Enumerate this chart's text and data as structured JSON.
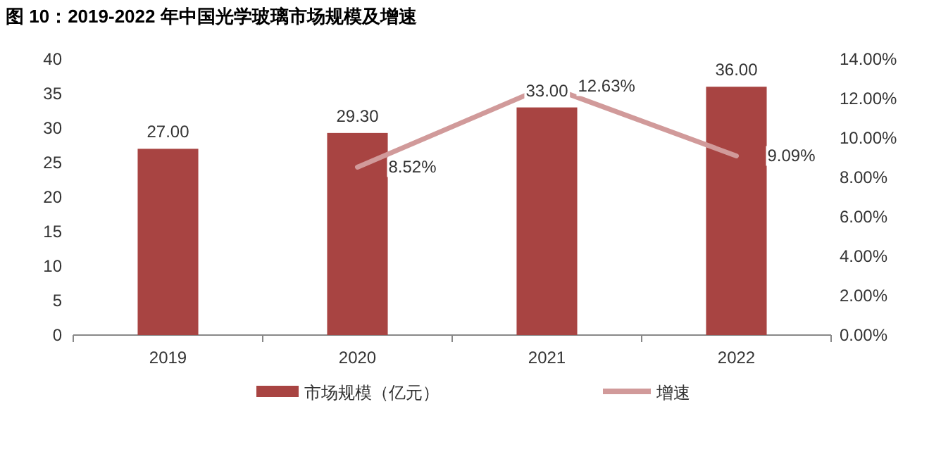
{
  "chart_data": {
    "type": "bar",
    "title": "图 10：2019-2022 年中国光学玻璃市场规模及增速",
    "categories": [
      "2019",
      "2020",
      "2021",
      "2022"
    ],
    "series": [
      {
        "name": "市场规模（亿元）",
        "color": "#a84442",
        "values": [
          27,
          29.3,
          33,
          36
        ],
        "value_labels": [
          "27.00",
          "29.30",
          "33.00",
          "36.00"
        ]
      },
      {
        "name": "增速",
        "type": "line",
        "color": "#d19a9a",
        "axis": "y2",
        "values": [
          null,
          8.52,
          12.63,
          9.09
        ],
        "value_labels": [
          null,
          "8.52%",
          "12.63%",
          "9.09%"
        ]
      }
    ],
    "ylim": [
      0,
      40
    ],
    "yticks": [
      0,
      5,
      10,
      15,
      20,
      25,
      30,
      35,
      40
    ],
    "y2lim": [
      0,
      14
    ],
    "y2ticks": [
      {
        "value": 0,
        "label": "0.00%"
      },
      {
        "value": 2,
        "label": "2.00%"
      },
      {
        "value": 4,
        "label": "4.00%"
      },
      {
        "value": 6,
        "label": "6.00%"
      },
      {
        "value": 8,
        "label": "8.00%"
      },
      {
        "value": 10,
        "label": "10.00%"
      },
      {
        "value": 12,
        "label": "12.00%"
      },
      {
        "value": 14,
        "label": "14.00%"
      }
    ],
    "legend": "bottom"
  }
}
